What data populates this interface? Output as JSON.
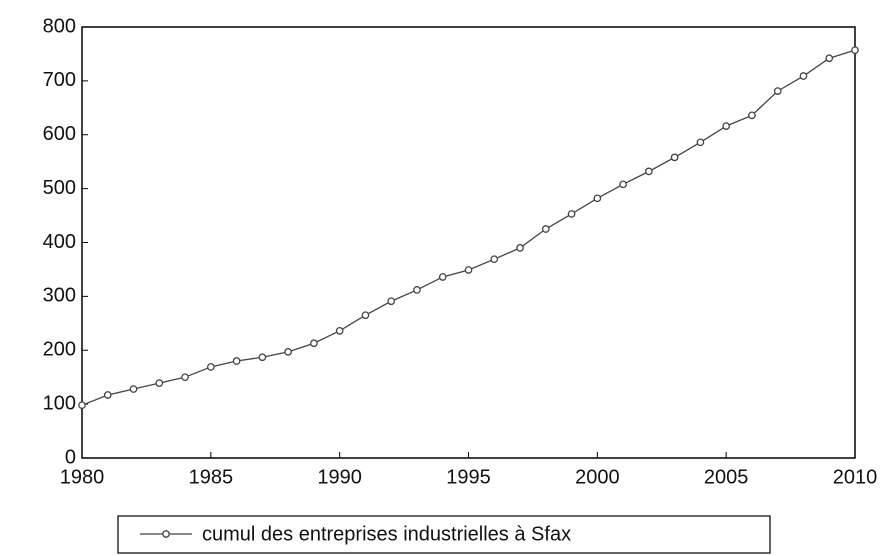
{
  "chart_data": {
    "type": "line",
    "x": [
      1980,
      1981,
      1982,
      1983,
      1984,
      1985,
      1986,
      1987,
      1988,
      1989,
      1990,
      1991,
      1992,
      1993,
      1994,
      1995,
      1996,
      1997,
      1998,
      1999,
      2000,
      2001,
      2002,
      2003,
      2004,
      2005,
      2006,
      2007,
      2008,
      2009,
      2010
    ],
    "series": [
      {
        "name": "cumul des entreprises industrielles à Sfax",
        "color": "#444444",
        "values": [
          98,
          117,
          128,
          139,
          150,
          169,
          180,
          187,
          197,
          213,
          236,
          265,
          291,
          312,
          336,
          349,
          369,
          390,
          425,
          453,
          482,
          508,
          532,
          558,
          586,
          616,
          636,
          681,
          709,
          742,
          757
        ]
      }
    ],
    "xlim": [
      1980,
      2010
    ],
    "xticks": [
      1980,
      1985,
      1990,
      1995,
      2000,
      2005,
      2010
    ],
    "ylim": [
      0,
      800
    ],
    "yticks": [
      0,
      100,
      200,
      300,
      400,
      500,
      600,
      700,
      800
    ],
    "legend": "bottom"
  }
}
